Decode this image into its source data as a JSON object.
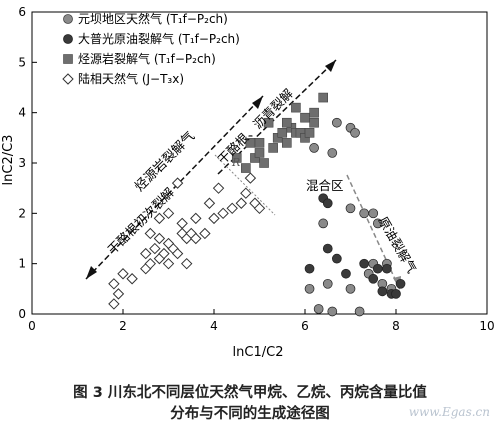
{
  "chart_data": {
    "type": "scatter",
    "xlabel": "lnC1/C2",
    "ylabel": "lnC2/C3",
    "xlim": [
      0,
      10
    ],
    "ylim": [
      0,
      6
    ],
    "xticks": [
      "0",
      "2",
      "4",
      "6",
      "8",
      "10"
    ],
    "yticks": [
      "0",
      "1",
      "2",
      "3",
      "4",
      "5",
      "6"
    ],
    "grid": false,
    "legend_position": "top-left",
    "series": [
      {
        "name": "元坝地区天然气 (T₁f−P₂ch)",
        "marker": "circle",
        "color": "#8a8a8a",
        "points": [
          [
            6.3,
            0.1
          ],
          [
            6.6,
            0.05
          ],
          [
            7.2,
            0.05
          ],
          [
            6.1,
            0.5
          ],
          [
            6.5,
            0.6
          ],
          [
            7.0,
            0.5
          ],
          [
            7.4,
            0.8
          ],
          [
            7.7,
            0.6
          ],
          [
            7.9,
            0.5
          ],
          [
            7.5,
            1.0
          ],
          [
            7.8,
            1.0
          ],
          [
            6.4,
            1.8
          ],
          [
            7.0,
            2.1
          ],
          [
            7.3,
            2.0
          ],
          [
            7.5,
            2.0
          ],
          [
            7.6,
            1.8
          ],
          [
            6.6,
            3.2
          ],
          [
            6.2,
            3.3
          ],
          [
            6.7,
            3.8
          ],
          [
            7.0,
            3.7
          ],
          [
            7.1,
            3.6
          ]
        ]
      },
      {
        "name": "大普光原油裂解气 (T₁f−P₂ch)",
        "marker": "circle",
        "color": "#3a3a3a",
        "points": [
          [
            6.5,
            1.3
          ],
          [
            6.7,
            1.1
          ],
          [
            6.1,
            0.9
          ],
          [
            6.9,
            0.8
          ],
          [
            7.3,
            1.0
          ],
          [
            7.6,
            0.9
          ],
          [
            7.8,
            0.9
          ],
          [
            7.5,
            0.7
          ],
          [
            8.1,
            0.6
          ],
          [
            7.9,
            0.4
          ],
          [
            8.0,
            0.4
          ],
          [
            7.7,
            0.45
          ],
          [
            6.4,
            2.3
          ],
          [
            6.5,
            2.2
          ]
        ]
      },
      {
        "name": "烃源岩裂解气 (T₁f−P₂ch)",
        "marker": "square",
        "color": "#6e6e6e",
        "points": [
          [
            4.7,
            2.9
          ],
          [
            4.9,
            3.1
          ],
          [
            5.0,
            3.2
          ],
          [
            5.1,
            3.0
          ],
          [
            5.3,
            3.3
          ],
          [
            5.4,
            3.5
          ],
          [
            5.5,
            3.6
          ],
          [
            5.6,
            3.4
          ],
          [
            5.7,
            3.7
          ],
          [
            5.8,
            3.6
          ],
          [
            5.9,
            3.6
          ],
          [
            6.0,
            3.5
          ],
          [
            6.1,
            3.6
          ],
          [
            6.2,
            3.8
          ],
          [
            6.2,
            4.0
          ],
          [
            6.4,
            4.3
          ],
          [
            5.8,
            4.1
          ],
          [
            4.5,
            3.1
          ],
          [
            4.8,
            3.4
          ],
          [
            5.2,
            3.8
          ],
          [
            5.6,
            3.8
          ],
          [
            5.0,
            3.4
          ],
          [
            6.0,
            3.9
          ]
        ]
      },
      {
        "name": "陆相天然气 (J−T₃x)",
        "marker": "diamond",
        "color": "#555555",
        "points": [
          [
            1.8,
            0.2
          ],
          [
            1.9,
            0.4
          ],
          [
            1.8,
            0.6
          ],
          [
            2.0,
            0.8
          ],
          [
            2.2,
            0.7
          ],
          [
            2.5,
            0.9
          ],
          [
            2.6,
            1.0
          ],
          [
            2.8,
            1.1
          ],
          [
            2.9,
            1.2
          ],
          [
            3.0,
            1.0
          ],
          [
            3.1,
            1.3
          ],
          [
            3.2,
            1.2
          ],
          [
            2.7,
            1.3
          ],
          [
            2.8,
            1.5
          ],
          [
            3.0,
            1.4
          ],
          [
            3.3,
            1.6
          ],
          [
            3.4,
            1.5
          ],
          [
            3.5,
            1.6
          ],
          [
            3.6,
            1.5
          ],
          [
            3.8,
            1.6
          ],
          [
            4.0,
            1.9
          ],
          [
            4.2,
            2.0
          ],
          [
            4.4,
            2.1
          ],
          [
            4.6,
            2.2
          ],
          [
            4.7,
            2.4
          ],
          [
            4.9,
            2.2
          ],
          [
            5.0,
            2.1
          ],
          [
            2.6,
            1.6
          ],
          [
            2.8,
            1.9
          ],
          [
            3.0,
            2.0
          ],
          [
            3.3,
            1.8
          ],
          [
            3.6,
            1.9
          ],
          [
            3.9,
            2.2
          ],
          [
            4.1,
            2.5
          ],
          [
            3.2,
            2.6
          ],
          [
            4.8,
            2.7
          ],
          [
            2.5,
            1.2
          ],
          [
            3.4,
            1.0
          ]
        ]
      }
    ],
    "annotations": {
      "kerogen_crack": "烃源岩裂解气",
      "primary_crack": "干酪根初次裂解",
      "secondary_crack": "干酪根、沥青裂解",
      "oil_crack": "原油裂解气",
      "mixed_zone": "混合区",
      "r_label": "R"
    }
  },
  "caption": {
    "line1": "图 3    川东北不同层位天然气甲烷、乙烷、丙烷含量比值",
    "line2": "分布与不同的生成途径图"
  },
  "watermark": "www.Egas.cn"
}
